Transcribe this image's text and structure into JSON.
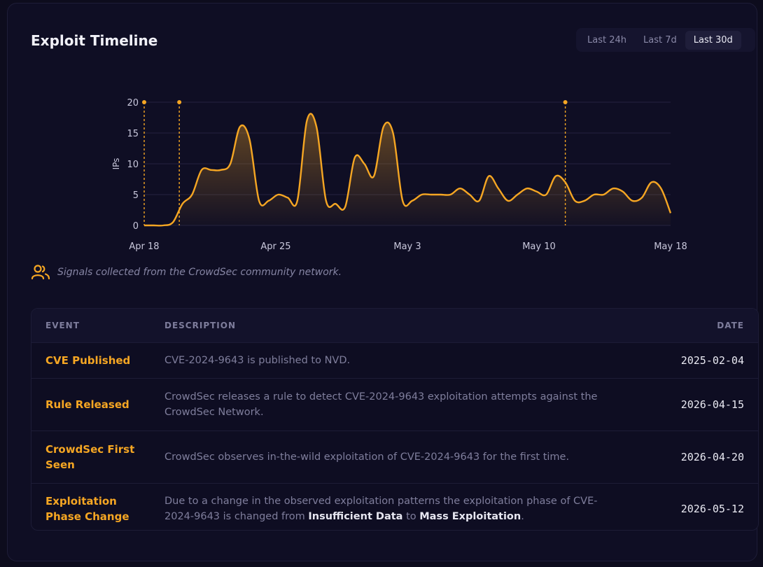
{
  "header": {
    "title": "Exploit Timeline",
    "ranges": [
      "Last 24h",
      "Last 7d",
      "Last 30d"
    ],
    "active_range": "Last 30d"
  },
  "chart_data": {
    "type": "area",
    "ylabel": "IPs",
    "xlabel": "",
    "ylim": [
      0,
      20
    ],
    "yticks": [
      0,
      5,
      10,
      15,
      20
    ],
    "xticks": [
      "Apr 18",
      "Apr 25",
      "May 3",
      "May 10",
      "May 18"
    ],
    "grid": true,
    "series": [
      {
        "values": [
          0,
          0,
          0,
          0.5,
          3.5,
          5,
          9,
          9,
          9,
          10,
          16,
          14,
          4,
          4,
          5,
          4.5,
          4,
          17,
          16,
          4,
          3.5,
          3,
          11,
          10,
          8,
          16,
          15,
          4,
          4,
          5,
          5,
          5,
          5,
          6,
          5,
          4,
          8,
          6,
          4,
          5,
          6,
          5.5,
          5,
          8,
          7,
          4,
          4,
          5,
          5,
          6,
          5.5,
          4,
          4.5,
          7,
          6,
          2
        ]
      }
    ],
    "event_markers": [
      "Apr 18",
      "Apr 20",
      "May 12"
    ],
    "colors": {
      "line": "#f5a623",
      "grid": "#24233f",
      "axis_text": "#c9c8dc"
    }
  },
  "note": {
    "icon": "users-icon",
    "text": "Signals collected from the CrowdSec community network."
  },
  "table": {
    "headers": {
      "event": "EVENT",
      "description": "DESCRIPTION",
      "date": "DATE"
    },
    "rows": [
      {
        "event": "CVE Published",
        "description": "CVE-2024-9643 is published to NVD.",
        "date": "2025-02-04"
      },
      {
        "event": "Rule Released",
        "description": "CrowdSec releases a rule to detect CVE-2024-9643 exploitation attempts against the CrowdSec Network.",
        "date": "2026-04-15"
      },
      {
        "event": "CrowdSec First Seen",
        "description": "CrowdSec observes in-the-wild exploitation of CVE-2024-9643 for the first time.",
        "date": "2026-04-20"
      },
      {
        "event": "Exploitation Phase Change",
        "description_parts": [
          "Due to a change in the observed exploitation patterns the exploitation phase of CVE-2024-9643 is changed from ",
          "Insufficient Data",
          " to ",
          "Mass Exploitation",
          "."
        ],
        "date": "2026-05-12"
      }
    ]
  }
}
